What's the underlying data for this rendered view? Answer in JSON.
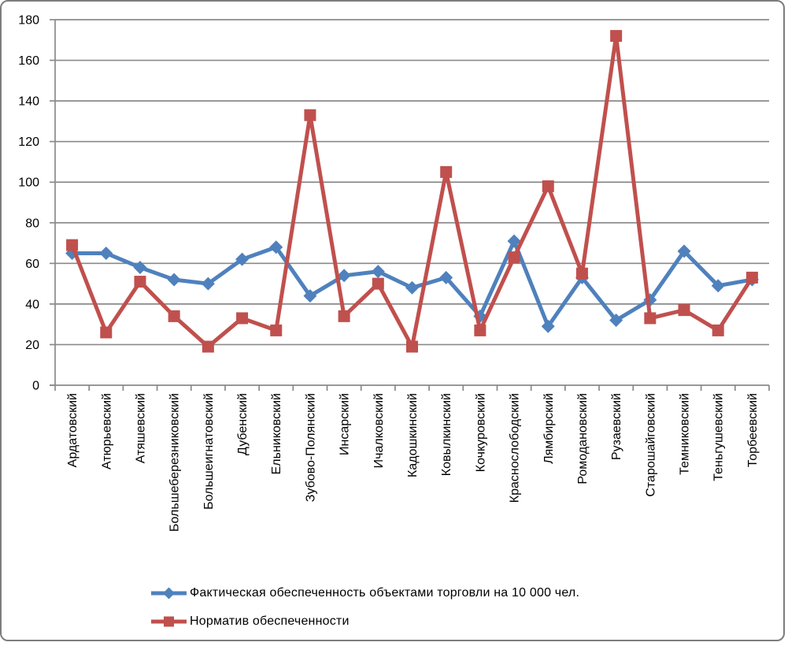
{
  "frame": {
    "background": "#FFFFFF",
    "border_color": "#7D7D7D"
  },
  "chart_data": {
    "type": "line",
    "title": "",
    "categories": [
      "Ардатовский",
      "Атюрьевский",
      "Атяшевский",
      "Большеберезниковский",
      "Большеигнатовский",
      "Дубенский",
      "Ельниковский",
      "Зубово-Полянский",
      "Инсарский",
      "Ичалковский",
      "Кадошкинский",
      "Ковылкинский",
      "Кочкуровский",
      "Краснослободский",
      "Лямбирский",
      "Ромодановский",
      "Рузаевский",
      "Старошайговский",
      "Темниковский",
      "Теньгушевский",
      "Торбеевский"
    ],
    "series": [
      {
        "name": "Фактическая обеспеченность объектами торговли на 10 000 чел.",
        "marker": "diamond",
        "color": "#4F81BD",
        "values": [
          65,
          65,
          58,
          52,
          50,
          62,
          68,
          44,
          54,
          56,
          48,
          53,
          34,
          71,
          29,
          53,
          32,
          42,
          66,
          49,
          52
        ]
      },
      {
        "name": "Норматив обеспеченности",
        "marker": "square",
        "color": "#C0504D",
        "values": [
          69,
          26,
          51,
          34,
          19,
          33,
          27,
          133,
          34,
          50,
          19,
          105,
          27,
          63,
          98,
          55,
          172,
          33,
          37,
          27,
          53
        ]
      }
    ],
    "ylim": [
      0,
      180
    ],
    "yticks": [
      0,
      20,
      40,
      60,
      80,
      100,
      120,
      140,
      160,
      180
    ],
    "grid": true,
    "legend_position": "bottom-left",
    "grid_color": "#8A8A8A",
    "axis_color": "#8A8A8A",
    "text_color": "#000000"
  }
}
